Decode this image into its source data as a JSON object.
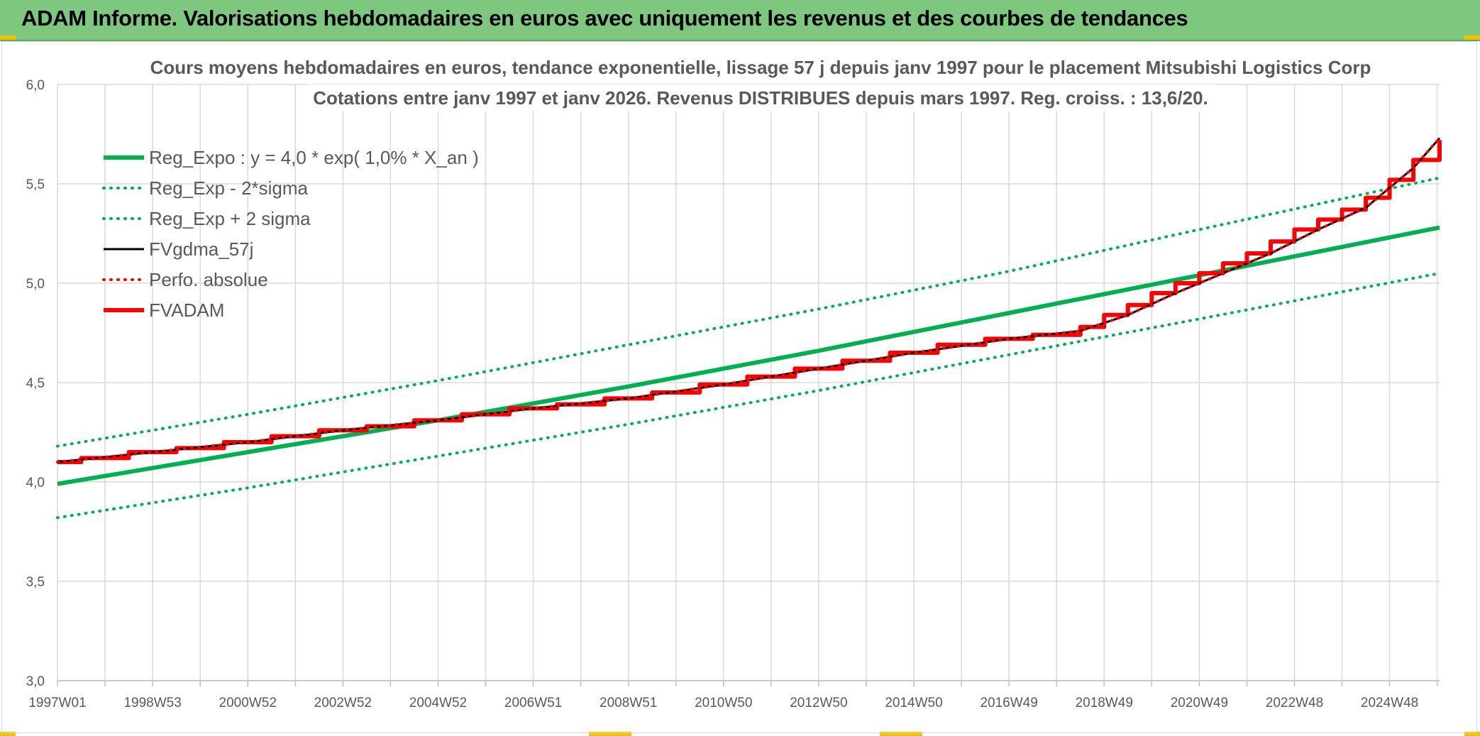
{
  "banner": {
    "title": "ADAM Informe. Valorisations hebdomadaires en euros avec uniquement les revenus et des courbes de tendances"
  },
  "colors": {
    "banner_bg": "#7dc77e",
    "green": "#00b050",
    "red": "#ff0000",
    "black": "#000000",
    "grid": "#d9d9d9",
    "text": "#595959"
  },
  "chart_data": {
    "type": "line",
    "title_lines": [
      "Cours moyens hebdomadaires en euros, tendance exponentielle, lissage 57 j depuis janv 1997 pour le placement Mitsubishi Logistics Corp",
      "Cotations entre janv 1997 et janv 2026. Revenus DISTRIBUES depuis mars 1997. Reg. croiss. : 13,6/20."
    ],
    "xlabel": "",
    "ylabel": "",
    "x_range": [
      1997.0,
      2026.05
    ],
    "ylim": [
      3.0,
      6.0
    ],
    "y_ticks": [
      "3,0",
      "3,5",
      "4,0",
      "4,5",
      "5,0",
      "5,5",
      "6,0"
    ],
    "y_tick_values": [
      3.0,
      3.5,
      4.0,
      4.5,
      5.0,
      5.5,
      6.0
    ],
    "x_ticks": [
      "1997W01",
      "1998W53",
      "2000W52",
      "2002W52",
      "2004W52",
      "2006W51",
      "2008W51",
      "2010W50",
      "2012W50",
      "2014W50",
      "2016W49",
      "2018W49",
      "2020W49",
      "2022W48",
      "2024W48"
    ],
    "x_tick_values": [
      1997.0,
      1999.0,
      2001.0,
      2003.0,
      2005.0,
      2007.0,
      2009.0,
      2011.0,
      2013.0,
      2015.0,
      2017.0,
      2019.0,
      2021.0,
      2023.0,
      2025.0
    ],
    "grid": true,
    "legend_position": "top-left",
    "series": [
      {
        "name": "Reg_Expo : y = 4,0 * exp( 1,0% *  X_an )",
        "style": "solid-thick",
        "color": "#00b050",
        "x": [
          1997.0,
          2001.0,
          2005.0,
          2009.0,
          2013.0,
          2017.0,
          2021.0,
          2026.05
        ],
        "y": [
          3.99,
          4.15,
          4.31,
          4.48,
          4.66,
          4.85,
          5.04,
          5.28
        ]
      },
      {
        "name": "Reg_Exp - 2*sigma",
        "style": "dotted",
        "color": "#00b050",
        "x": [
          1997.0,
          2001.0,
          2005.0,
          2009.0,
          2013.0,
          2017.0,
          2021.0,
          2026.05
        ],
        "y": [
          3.82,
          3.97,
          4.13,
          4.29,
          4.46,
          4.64,
          4.82,
          5.05
        ]
      },
      {
        "name": "Reg_Exp + 2 sigma",
        "style": "dotted",
        "color": "#00b050",
        "x": [
          1997.0,
          2001.0,
          2005.0,
          2009.0,
          2013.0,
          2017.0,
          2021.0,
          2026.05
        ],
        "y": [
          4.18,
          4.34,
          4.51,
          4.69,
          4.87,
          5.06,
          5.27,
          5.53
        ]
      },
      {
        "name": "FVgdma_57j",
        "style": "solid-thin",
        "color": "#000000",
        "x": [
          1997.0,
          1999.0,
          2001.0,
          2003.0,
          2005.0,
          2007.0,
          2009.0,
          2011.0,
          2013.0,
          2015.0,
          2017.0,
          2018.5,
          2019.5,
          2020.5,
          2021.5,
          2022.5,
          2023.5,
          2024.5,
          2025.5,
          2026.05
        ],
        "y": [
          4.1,
          4.15,
          4.2,
          4.26,
          4.31,
          4.37,
          4.42,
          4.49,
          4.57,
          4.65,
          4.72,
          4.76,
          4.84,
          4.95,
          5.05,
          5.15,
          5.27,
          5.38,
          5.58,
          5.73
        ]
      },
      {
        "name": "Perfo. absolue",
        "style": "dotted",
        "color": "#ff0000",
        "x": [
          1997.0,
          1999.0,
          2001.0,
          2003.0,
          2005.0,
          2007.0,
          2009.0,
          2011.0,
          2013.0,
          2015.0,
          2017.0,
          2018.5,
          2019.5,
          2020.5,
          2021.5,
          2022.5,
          2023.5,
          2024.5,
          2025.5,
          2026.05
        ],
        "y": [
          4.1,
          4.15,
          4.2,
          4.26,
          4.31,
          4.37,
          4.42,
          4.49,
          4.57,
          4.65,
          4.72,
          4.76,
          4.84,
          4.95,
          5.05,
          5.15,
          5.27,
          5.38,
          5.58,
          5.73
        ]
      },
      {
        "name": "FVADAM",
        "style": "step-thick",
        "color": "#ff0000",
        "x": [
          1997.0,
          1997.5,
          1998.5,
          1999.5,
          2000.5,
          2001.5,
          2002.5,
          2003.5,
          2004.5,
          2005.5,
          2006.5,
          2007.5,
          2008.5,
          2009.5,
          2010.5,
          2011.5,
          2012.5,
          2013.5,
          2014.5,
          2015.5,
          2016.5,
          2017.5,
          2018.5,
          2019.0,
          2019.5,
          2020.0,
          2020.5,
          2021.0,
          2021.5,
          2022.0,
          2022.5,
          2023.0,
          2023.5,
          2024.0,
          2024.5,
          2025.0,
          2025.5,
          2026.05
        ],
        "y": [
          4.1,
          4.12,
          4.15,
          4.17,
          4.2,
          4.23,
          4.26,
          4.28,
          4.31,
          4.34,
          4.37,
          4.39,
          4.42,
          4.45,
          4.49,
          4.53,
          4.57,
          4.61,
          4.65,
          4.69,
          4.72,
          4.74,
          4.78,
          4.84,
          4.89,
          4.95,
          5.0,
          5.05,
          5.1,
          5.15,
          5.21,
          5.27,
          5.32,
          5.37,
          5.43,
          5.52,
          5.62,
          5.72
        ]
      }
    ]
  }
}
